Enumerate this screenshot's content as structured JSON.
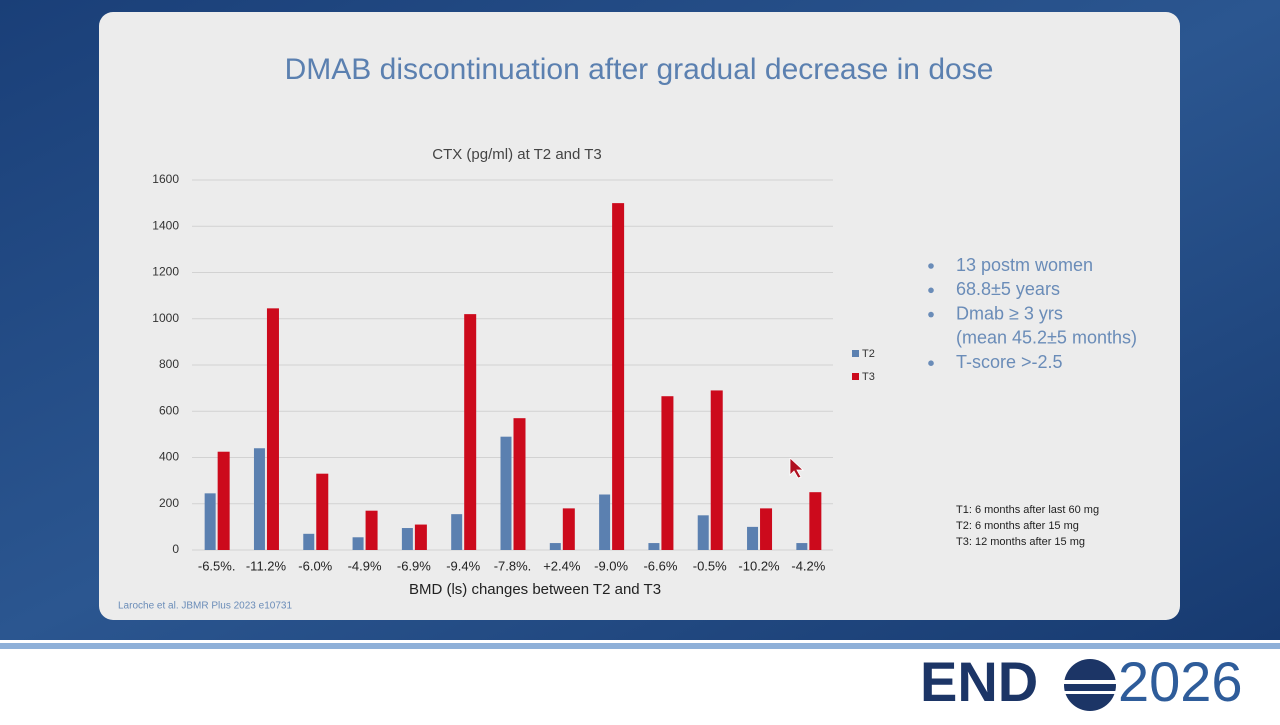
{
  "slide_title": "DMAB discontinuation after gradual decrease in dose",
  "chart_data": {
    "type": "bar",
    "title": "CTX (pg/ml) at T2 and T3",
    "x_label": "BMD (ls) changes between T2 and T3",
    "categories": [
      "-6.5%.",
      "-11.2%",
      "-6.0%",
      "-4.9%",
      "-6.9%",
      "-9.4%",
      "-7.8%.",
      "+2.4%",
      "-9.0%",
      "-6.6%",
      "-0.5%",
      "-10.2%",
      "-4.2%"
    ],
    "series": [
      {
        "name": "T2",
        "color": "#5b80b0",
        "values": [
          245,
          440,
          70,
          55,
          95,
          155,
          490,
          30,
          240,
          30,
          150,
          100,
          30
        ]
      },
      {
        "name": "T3",
        "color": "#cc0a1c",
        "values": [
          425,
          1045,
          330,
          170,
          110,
          1020,
          570,
          180,
          1500,
          665,
          690,
          180,
          250
        ]
      }
    ],
    "ylim": [
      0,
      1600
    ],
    "yticks": [
      0,
      200,
      400,
      600,
      800,
      1000,
      1200,
      1400,
      1600
    ],
    "grid": true,
    "legend": "right"
  },
  "bullets": [
    [
      "13 postm women"
    ],
    [
      "68.8±5 years"
    ],
    [
      "Dmab ≥ 3 yrs",
      "(mean 45.2±5 months)"
    ],
    [
      "T-score >-2.5"
    ]
  ],
  "notes": [
    "T1: 6 months after last 60 mg",
    "T2: 6 months after 15 mg",
    "T3: 12 months after 15 mg"
  ],
  "citation": "Laroche et al. JBMR Plus 2023 e10731",
  "logo": {
    "left": "END",
    "right": "2026"
  }
}
